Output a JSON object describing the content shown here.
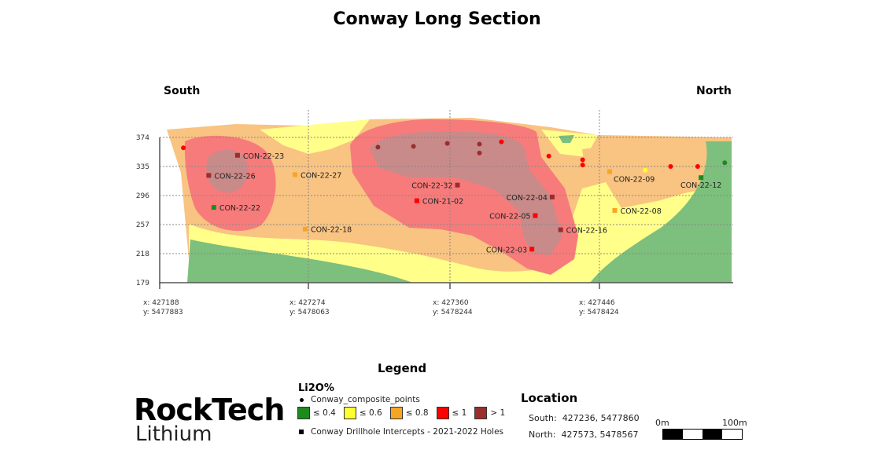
{
  "title": "Conway Long Section",
  "directions": {
    "south": "South",
    "north": "North"
  },
  "axis": {
    "elevation_ticks": [
      "374",
      "335",
      "296",
      "257",
      "218",
      "179"
    ],
    "location_ticks": [
      {
        "x_label": "x: 427188",
        "y_label": "y: 5477883"
      },
      {
        "x_label": "x: 427274",
        "y_label": "y: 5478063"
      },
      {
        "x_label": "x: 427360",
        "y_label": "y: 5478244"
      },
      {
        "x_label": "x: 427446",
        "y_label": "y: 5478424"
      }
    ]
  },
  "grade_colors": {
    "le04": "#1e8a1e",
    "le06": "#ffff33",
    "le08": "#f5a623",
    "le1": "#ff0000",
    "gt1": "#9b2d2d"
  },
  "drillholes": [
    {
      "name": "CON-22-23",
      "easting": 427234,
      "elev": 350,
      "grade": "gt1"
    },
    {
      "name": "CON-22-26",
      "easting": 427217,
      "elev": 323,
      "grade": "gt1"
    },
    {
      "name": "CON-22-22",
      "easting": 427220,
      "elev": 280,
      "grade": "le04"
    },
    {
      "name": "CON-22-27",
      "easting": 427268,
      "elev": 324,
      "grade": "le08"
    },
    {
      "name": "CON-22-18",
      "easting": 427274,
      "elev": 251,
      "grade": "le08"
    },
    {
      "name": "CON-22-32",
      "easting": 427364,
      "elev": 310,
      "grade": "gt1"
    },
    {
      "name": "CON-21-02",
      "easting": 427340,
      "elev": 289,
      "grade": "le1"
    },
    {
      "name": "CON-22-04",
      "easting": 427420,
      "elev": 294,
      "grade": "gt1"
    },
    {
      "name": "CON-22-05",
      "easting": 427410,
      "elev": 269,
      "grade": "le1"
    },
    {
      "name": "CON-22-16",
      "easting": 427425,
      "elev": 250,
      "grade": "gt1"
    },
    {
      "name": "CON-22-03",
      "easting": 427408,
      "elev": 224,
      "grade": "le1"
    },
    {
      "name": "CON-22-09",
      "easting": 427454,
      "elev": 328,
      "grade": "le08"
    },
    {
      "name": "CON-22-08",
      "easting": 427457,
      "elev": 276,
      "grade": "le08"
    },
    {
      "name": "CON-22-12",
      "easting": 427508,
      "elev": 320,
      "grade": "le04"
    }
  ],
  "composite_points": [
    {
      "easting": 427202,
      "elev": 360,
      "grade": "le1"
    },
    {
      "easting": 427317,
      "elev": 361,
      "grade": "gt1"
    },
    {
      "easting": 427338,
      "elev": 362,
      "grade": "gt1"
    },
    {
      "easting": 427358,
      "elev": 366,
      "grade": "gt1"
    },
    {
      "easting": 427377,
      "elev": 365,
      "grade": "gt1"
    },
    {
      "easting": 427377,
      "elev": 353,
      "grade": "gt1"
    },
    {
      "easting": 427390,
      "elev": 368,
      "grade": "le1"
    },
    {
      "easting": 427418,
      "elev": 349,
      "grade": "le1"
    },
    {
      "easting": 427438,
      "elev": 344,
      "grade": "le1"
    },
    {
      "easting": 427438,
      "elev": 337,
      "grade": "le1"
    },
    {
      "easting": 427475,
      "elev": 330,
      "grade": "le06"
    },
    {
      "easting": 427490,
      "elev": 335,
      "grade": "le1"
    },
    {
      "easting": 427506,
      "elev": 335,
      "grade": "le1"
    },
    {
      "easting": 427522,
      "elev": 340,
      "grade": "le04"
    }
  ],
  "legend": {
    "title": "Legend",
    "subtitle": "Li2O%",
    "composite_label": "Conway_composite_points",
    "classes": [
      {
        "key": "le04",
        "label": "≤ 0.4"
      },
      {
        "key": "le06",
        "label": "≤ 0.6"
      },
      {
        "key": "le08",
        "label": "≤ 0.8"
      },
      {
        "key": "le1",
        "label": "≤ 1"
      },
      {
        "key": "gt1",
        "label": "> 1"
      }
    ],
    "drillhole_label": "Conway Drillhole Intercepts - 2021-2022 Holes"
  },
  "location": {
    "title": "Location",
    "south_label": "South:",
    "south_value": "427236, 5477860",
    "north_label": "North:",
    "north_value": "427573, 5478567"
  },
  "scale": {
    "start": "0m",
    "end": "100m"
  },
  "logo": {
    "line1": "RockTech",
    "line2": "Lithium"
  }
}
